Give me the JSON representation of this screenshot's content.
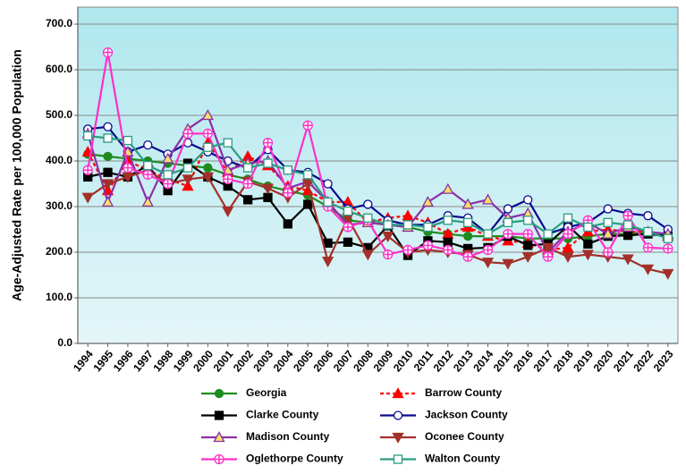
{
  "chart_data": {
    "type": "line",
    "y_label": "Age-Adjusted Rate per 100,000 Population",
    "categories": [
      "1994",
      "1995",
      "1996",
      "1997",
      "1998",
      "1999",
      "2000",
      "2001",
      "2002",
      "2003",
      "2004",
      "2005",
      "2006",
      "2007",
      "2008",
      "2009",
      "2010",
      "2011",
      "2012",
      "2013",
      "2014",
      "2015",
      "2016",
      "2017",
      "2018",
      "2019",
      "2020",
      "2021",
      "2022",
      "2023"
    ],
    "ylim": [
      0,
      700
    ],
    "yticks": [
      {
        "value": 0,
        "label": "0.0"
      },
      {
        "value": 100,
        "label": "100.0"
      },
      {
        "value": 200,
        "label": "200.0"
      },
      {
        "value": 300,
        "label": "300.0"
      },
      {
        "value": 400,
        "label": "400.0"
      },
      {
        "value": 500,
        "label": "500.0"
      },
      {
        "value": 600,
        "label": "600.0"
      },
      {
        "value": 700,
        "label": "700.0"
      }
    ],
    "grid": true,
    "series": [
      {
        "name": "Georgia",
        "color": "#1f8c1f",
        "marker": "circle",
        "line_style": "solid",
        "values": [
          415,
          410,
          405,
          400,
          395,
          390,
          385,
          370,
          360,
          345,
          335,
          325,
          300,
          270,
          265,
          260,
          255,
          245,
          240,
          235,
          235,
          235,
          230,
          230,
          230,
          235,
          240,
          240,
          245,
          235
        ]
      },
      {
        "name": "Barrow County",
        "color": "#ff0000",
        "marker": "triangle",
        "line_style": "dashed",
        "values": [
          420,
          335,
          400,
          380,
          360,
          345,
          440,
          375,
          410,
          390,
          345,
          335,
          310,
          310,
          265,
          275,
          280,
          265,
          240,
          255,
          235,
          225,
          220,
          205,
          210,
          245,
          250,
          245,
          245,
          235
        ]
      },
      {
        "name": "Clarke County",
        "color": "#000000",
        "marker": "square",
        "line_style": "solid",
        "values": [
          365,
          375,
          365,
          390,
          335,
          395,
          365,
          345,
          315,
          320,
          262,
          305,
          220,
          222,
          210,
          258,
          193,
          225,
          222,
          208,
          210,
          235,
          215,
          218,
          258,
          218,
          235,
          237,
          240,
          235
        ]
      },
      {
        "name": "Jackson County",
        "color": "#0a0a8c",
        "marker": "circle-open",
        "line_style": "solid",
        "values": [
          470,
          475,
          420,
          435,
          415,
          440,
          420,
          400,
          385,
          425,
          380,
          375,
          350,
          295,
          305,
          270,
          260,
          260,
          280,
          275,
          240,
          295,
          315,
          240,
          255,
          265,
          295,
          285,
          280,
          250
        ]
      },
      {
        "name": "Madison County",
        "color": "#8a2fa8",
        "marker": "triangle-open",
        "line_style": "solid",
        "values": [
          460,
          310,
          420,
          310,
          405,
          470,
          500,
          380,
          395,
          400,
          340,
          355,
          310,
          260,
          265,
          260,
          255,
          310,
          338,
          305,
          315,
          275,
          285,
          200,
          245,
          265,
          240,
          255,
          245,
          240
        ]
      },
      {
        "name": "Oconee County",
        "color": "#a3302a",
        "marker": "triangle-down",
        "line_style": "solid",
        "values": [
          320,
          350,
          365,
          380,
          350,
          360,
          365,
          290,
          355,
          340,
          320,
          350,
          180,
          275,
          195,
          235,
          200,
          205,
          200,
          195,
          178,
          175,
          190,
          210,
          190,
          195,
          190,
          185,
          163,
          153
        ]
      },
      {
        "name": "Oglethorpe County",
        "color": "#ff2fc8",
        "marker": "cross-open",
        "line_style": "solid",
        "values": [
          380,
          638,
          385,
          370,
          350,
          460,
          460,
          360,
          350,
          440,
          330,
          478,
          300,
          255,
          270,
          195,
          205,
          215,
          205,
          190,
          205,
          240,
          240,
          190,
          240,
          270,
          200,
          280,
          210,
          208
        ]
      },
      {
        "name": "Walton County",
        "color": "#2a9c82",
        "marker": "square-open",
        "line_style": "solid",
        "values": [
          455,
          450,
          445,
          390,
          370,
          385,
          430,
          440,
          385,
          395,
          380,
          370,
          310,
          290,
          275,
          260,
          260,
          255,
          270,
          265,
          240,
          265,
          270,
          240,
          275,
          255,
          265,
          260,
          245,
          230
        ]
      }
    ]
  }
}
